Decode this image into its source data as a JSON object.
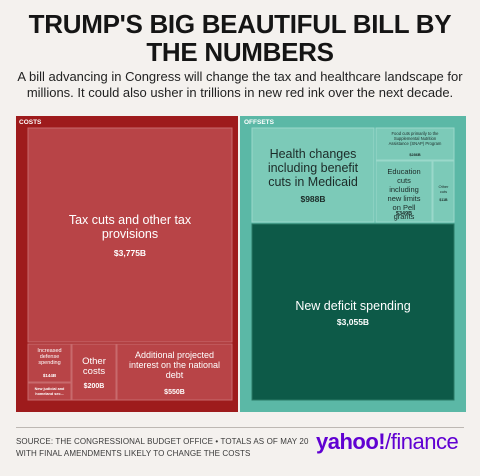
{
  "header": {
    "title": "TRUMP'S BIG BEAUTIFUL BILL BY THE NUMBERS",
    "subtitle": "A bill advancing in Congress will change the tax and healthcare landscape for millions. It could also usher in trillions in new red ink over the next decade."
  },
  "chart_data": {
    "type": "treemap",
    "groups": [
      {
        "name": "COSTS",
        "color": "#9e1b1c",
        "items": [
          {
            "label": "Tax cuts and other tax provisions",
            "value_label": "$3,775B",
            "value": 3775
          },
          {
            "label": "Increased defense spending",
            "value_label": "$144B",
            "value": 144
          },
          {
            "label": "New judicial and homeland sec...",
            "value_label": "",
            "value": 62
          },
          {
            "label": "Other costs",
            "value_label": "$200B",
            "value": 200
          },
          {
            "label": "Additional projected interest on the national debt",
            "value_label": "$550B",
            "value": 550
          }
        ]
      },
      {
        "name": "OFFSETS",
        "color": "#5bb8a6",
        "items": [
          {
            "label": "Health changes including benefit cuts in Medicaid",
            "value_label": "$988B",
            "value": 988
          },
          {
            "label": "Food cuts primarily to the Supplemental Nutrition Assistance (SNAP) Program",
            "value_label": "$286B",
            "value": 286
          },
          {
            "label": "Education cuts including new limits on Pell grants",
            "value_label": "$349B",
            "value": 349
          },
          {
            "label": "Other cuts",
            "value_label": "$11B",
            "value": 11
          },
          {
            "label": "New deficit spending",
            "value_label": "$3,055B",
            "value": 3055
          }
        ]
      }
    ]
  },
  "footer": {
    "source": "SOURCE: THE CONGRESSIONAL BUDGET OFFICE • TOTALS AS OF MAY 20 WITH FINAL AMENDMENTS LIKELY TO CHANGE THE COSTS",
    "logo_main": "yahoo!",
    "logo_sep": "/",
    "logo_sub": "finance"
  },
  "colors": {
    "costs_frame": "#9e1b1c",
    "costs_tile": "#b84447",
    "offsets_frame": "#5bb8a6",
    "offsets_tile": "#7ccab8",
    "deficit_tile": "#0d5a48",
    "brand": "#6001d2"
  }
}
